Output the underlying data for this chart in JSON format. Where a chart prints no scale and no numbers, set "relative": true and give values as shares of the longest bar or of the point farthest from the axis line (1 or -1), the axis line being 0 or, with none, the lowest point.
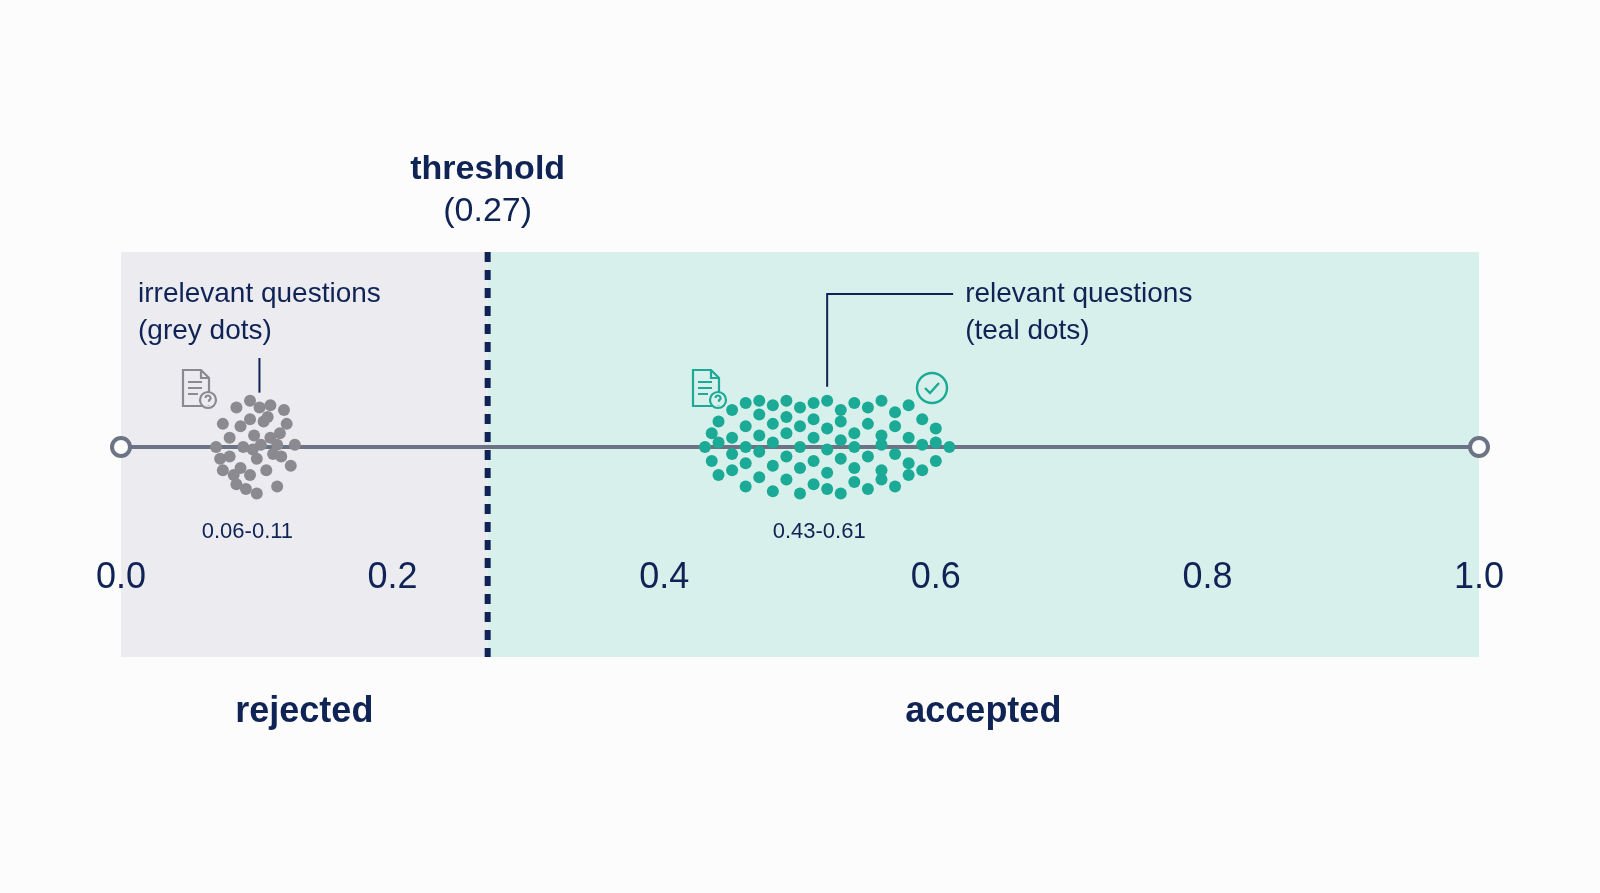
{
  "chart_data": {
    "type": "scatter",
    "relative": true,
    "xlim": [
      0,
      1
    ],
    "xticks": [
      {
        "value": 0,
        "label": "0.0"
      },
      0.2,
      0.4,
      0.6,
      0.8,
      {
        "value": 1,
        "label": "1.0"
      }
    ],
    "grid": false,
    "legend": false,
    "marker": "circle",
    "ref_lines": [
      {
        "axis": "x",
        "value": 0.27,
        "label": "threshold (0.27)",
        "color": "#0f2355",
        "line_style": "dashed"
      }
    ],
    "bands": [
      {
        "axis": "x",
        "from": 0,
        "to": 0.27,
        "label": "rejected",
        "color": "#ececf0"
      },
      {
        "axis": "x",
        "from": 0.27,
        "to": 1,
        "label": "accepted",
        "color": "#d8f0ec"
      }
    ],
    "series": [
      {
        "name": "irrelevant questions (grey dots)",
        "color": "#8a8a90",
        "x": [
          0.07,
          0.075,
          0.075,
          0.085,
          0.085,
          0.095,
          0.1,
          0.11,
          0.115,
          0.122,
          0.125,
          0.128,
          0.08,
          0.08,
          0.088,
          0.088,
          0.09,
          0.095,
          0.095,
          0.098,
          0.1,
          0.103,
          0.105,
          0.107,
          0.11,
          0.112,
          0.117,
          0.118,
          0.12,
          0.092,
          0.102,
          0.073,
          0.083,
          0.108,
          0.115,
          0.097
        ],
        "values": [
          0,
          0.5,
          -0.5,
          0.85,
          -0.8,
          1,
          -1,
          0.9,
          -0.85,
          0.5,
          -0.4,
          0.05,
          0.2,
          -0.2,
          0.45,
          -0.45,
          0,
          0.6,
          -0.6,
          0.25,
          -0.25,
          0.05,
          0.55,
          -0.5,
          0.2,
          -0.15,
          0.3,
          -0.2,
          0.8,
          -0.9,
          0.85,
          -0.25,
          -0.6,
          0.65,
          0.05,
          -0.05
        ]
      },
      {
        "name": "relevant questions (teal dots)",
        "color": "#1aaa95",
        "x": [
          0.43,
          0.435,
          0.435,
          0.44,
          0.44,
          0.44,
          0.45,
          0.45,
          0.45,
          0.45,
          0.46,
          0.46,
          0.46,
          0.46,
          0.46,
          0.47,
          0.47,
          0.47,
          0.47,
          0.47,
          0.48,
          0.48,
          0.48,
          0.48,
          0.48,
          0.49,
          0.49,
          0.49,
          0.49,
          0.49,
          0.5,
          0.5,
          0.5,
          0.5,
          0.5,
          0.51,
          0.51,
          0.51,
          0.51,
          0.51,
          0.52,
          0.52,
          0.52,
          0.52,
          0.52,
          0.53,
          0.53,
          0.53,
          0.53,
          0.53,
          0.54,
          0.54,
          0.54,
          0.54,
          0.54,
          0.55,
          0.55,
          0.55,
          0.55,
          0.56,
          0.56,
          0.56,
          0.56,
          0.56,
          0.57,
          0.57,
          0.57,
          0.57,
          0.58,
          0.58,
          0.58,
          0.58,
          0.59,
          0.59,
          0.59,
          0.6,
          0.6,
          0.6,
          0.61
        ],
        "values": [
          0,
          0.3,
          -0.3,
          0.55,
          -0.6,
          0.1,
          0.8,
          -0.5,
          0.2,
          -0.15,
          0.95,
          -0.85,
          0.45,
          -0.35,
          0,
          0.7,
          -0.65,
          0.25,
          -0.1,
          1,
          0.9,
          -0.95,
          0.5,
          -0.4,
          0.1,
          1,
          -0.7,
          0.3,
          -0.2,
          0.65,
          0.85,
          -1,
          0.45,
          -0.45,
          0,
          0.95,
          -0.8,
          0.2,
          -0.3,
          0.6,
          1,
          -0.9,
          0.4,
          -0.55,
          -0.05,
          0.8,
          -1,
          0.55,
          -0.25,
          0.15,
          0.95,
          -0.75,
          0.3,
          -0.45,
          0,
          0.85,
          -0.9,
          0.5,
          -0.2,
          1,
          -0.7,
          0.25,
          -0.5,
          0.05,
          0.75,
          -0.85,
          0.45,
          -0.15,
          0.9,
          -0.6,
          0.2,
          -0.35,
          0.6,
          -0.5,
          0.05,
          0.4,
          -0.3,
          0.1,
          0
        ]
      }
    ],
    "annotations": [
      "0.06-0.11",
      "0.43-0.61"
    ]
  }
}
